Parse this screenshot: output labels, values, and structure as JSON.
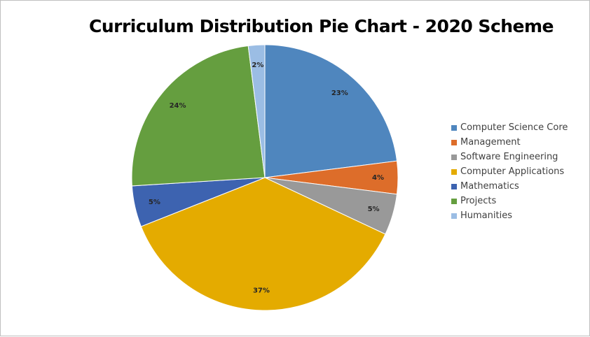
{
  "chart_data": {
    "type": "pie",
    "title": "Curriculum Distribution Pie Chart - 2020 Scheme",
    "categories": [
      "Computer Science Core",
      "Management",
      "Software Engineering",
      "Computer Applications",
      "Mathematics",
      "Projects",
      "Humanities"
    ],
    "values": [
      23,
      4,
      5,
      37,
      5,
      24,
      2
    ],
    "data_labels": [
      "23%",
      "4%",
      "5%",
      "37%",
      "5%",
      "24%",
      "2%"
    ],
    "colors": [
      "#4f86be",
      "#dd6d2a",
      "#999999",
      "#e4ab00",
      "#3d63b0",
      "#659e3f",
      "#9bbde4"
    ],
    "legend_position": "right",
    "start_angle": "12 o'clock",
    "direction": "clockwise"
  }
}
